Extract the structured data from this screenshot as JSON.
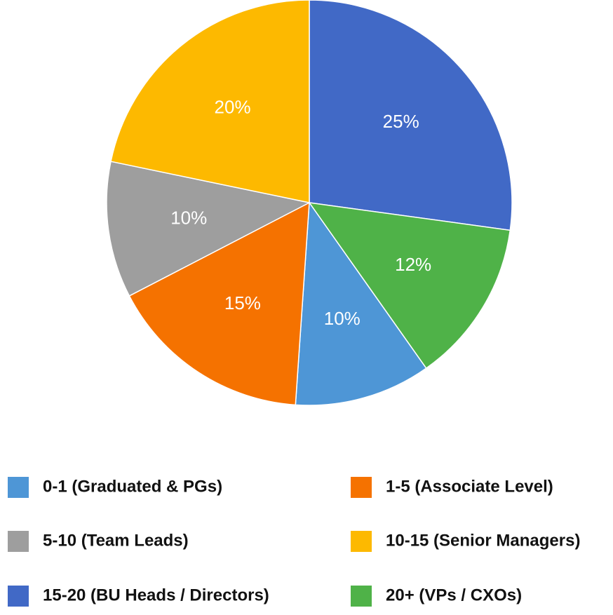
{
  "chart_data": {
    "type": "pie",
    "categories": [
      "15-20 (BU Heads / Directors)",
      "20+ (VPs / CXOs)",
      "0-1 (Graduated & PGs)",
      "1-5 (Associate Level)",
      "5-10 (Team Leads)",
      "10-15 (Senior Managers)"
    ],
    "values": [
      25,
      12,
      10,
      15,
      10,
      20
    ],
    "value_labels": [
      "25%",
      "12%",
      "10%",
      "15%",
      "10%",
      "20%"
    ],
    "colors": [
      "#4169c6",
      "#4fb248",
      "#4e96d6",
      "#f57200",
      "#9e9e9e",
      "#fdb900"
    ]
  }
}
